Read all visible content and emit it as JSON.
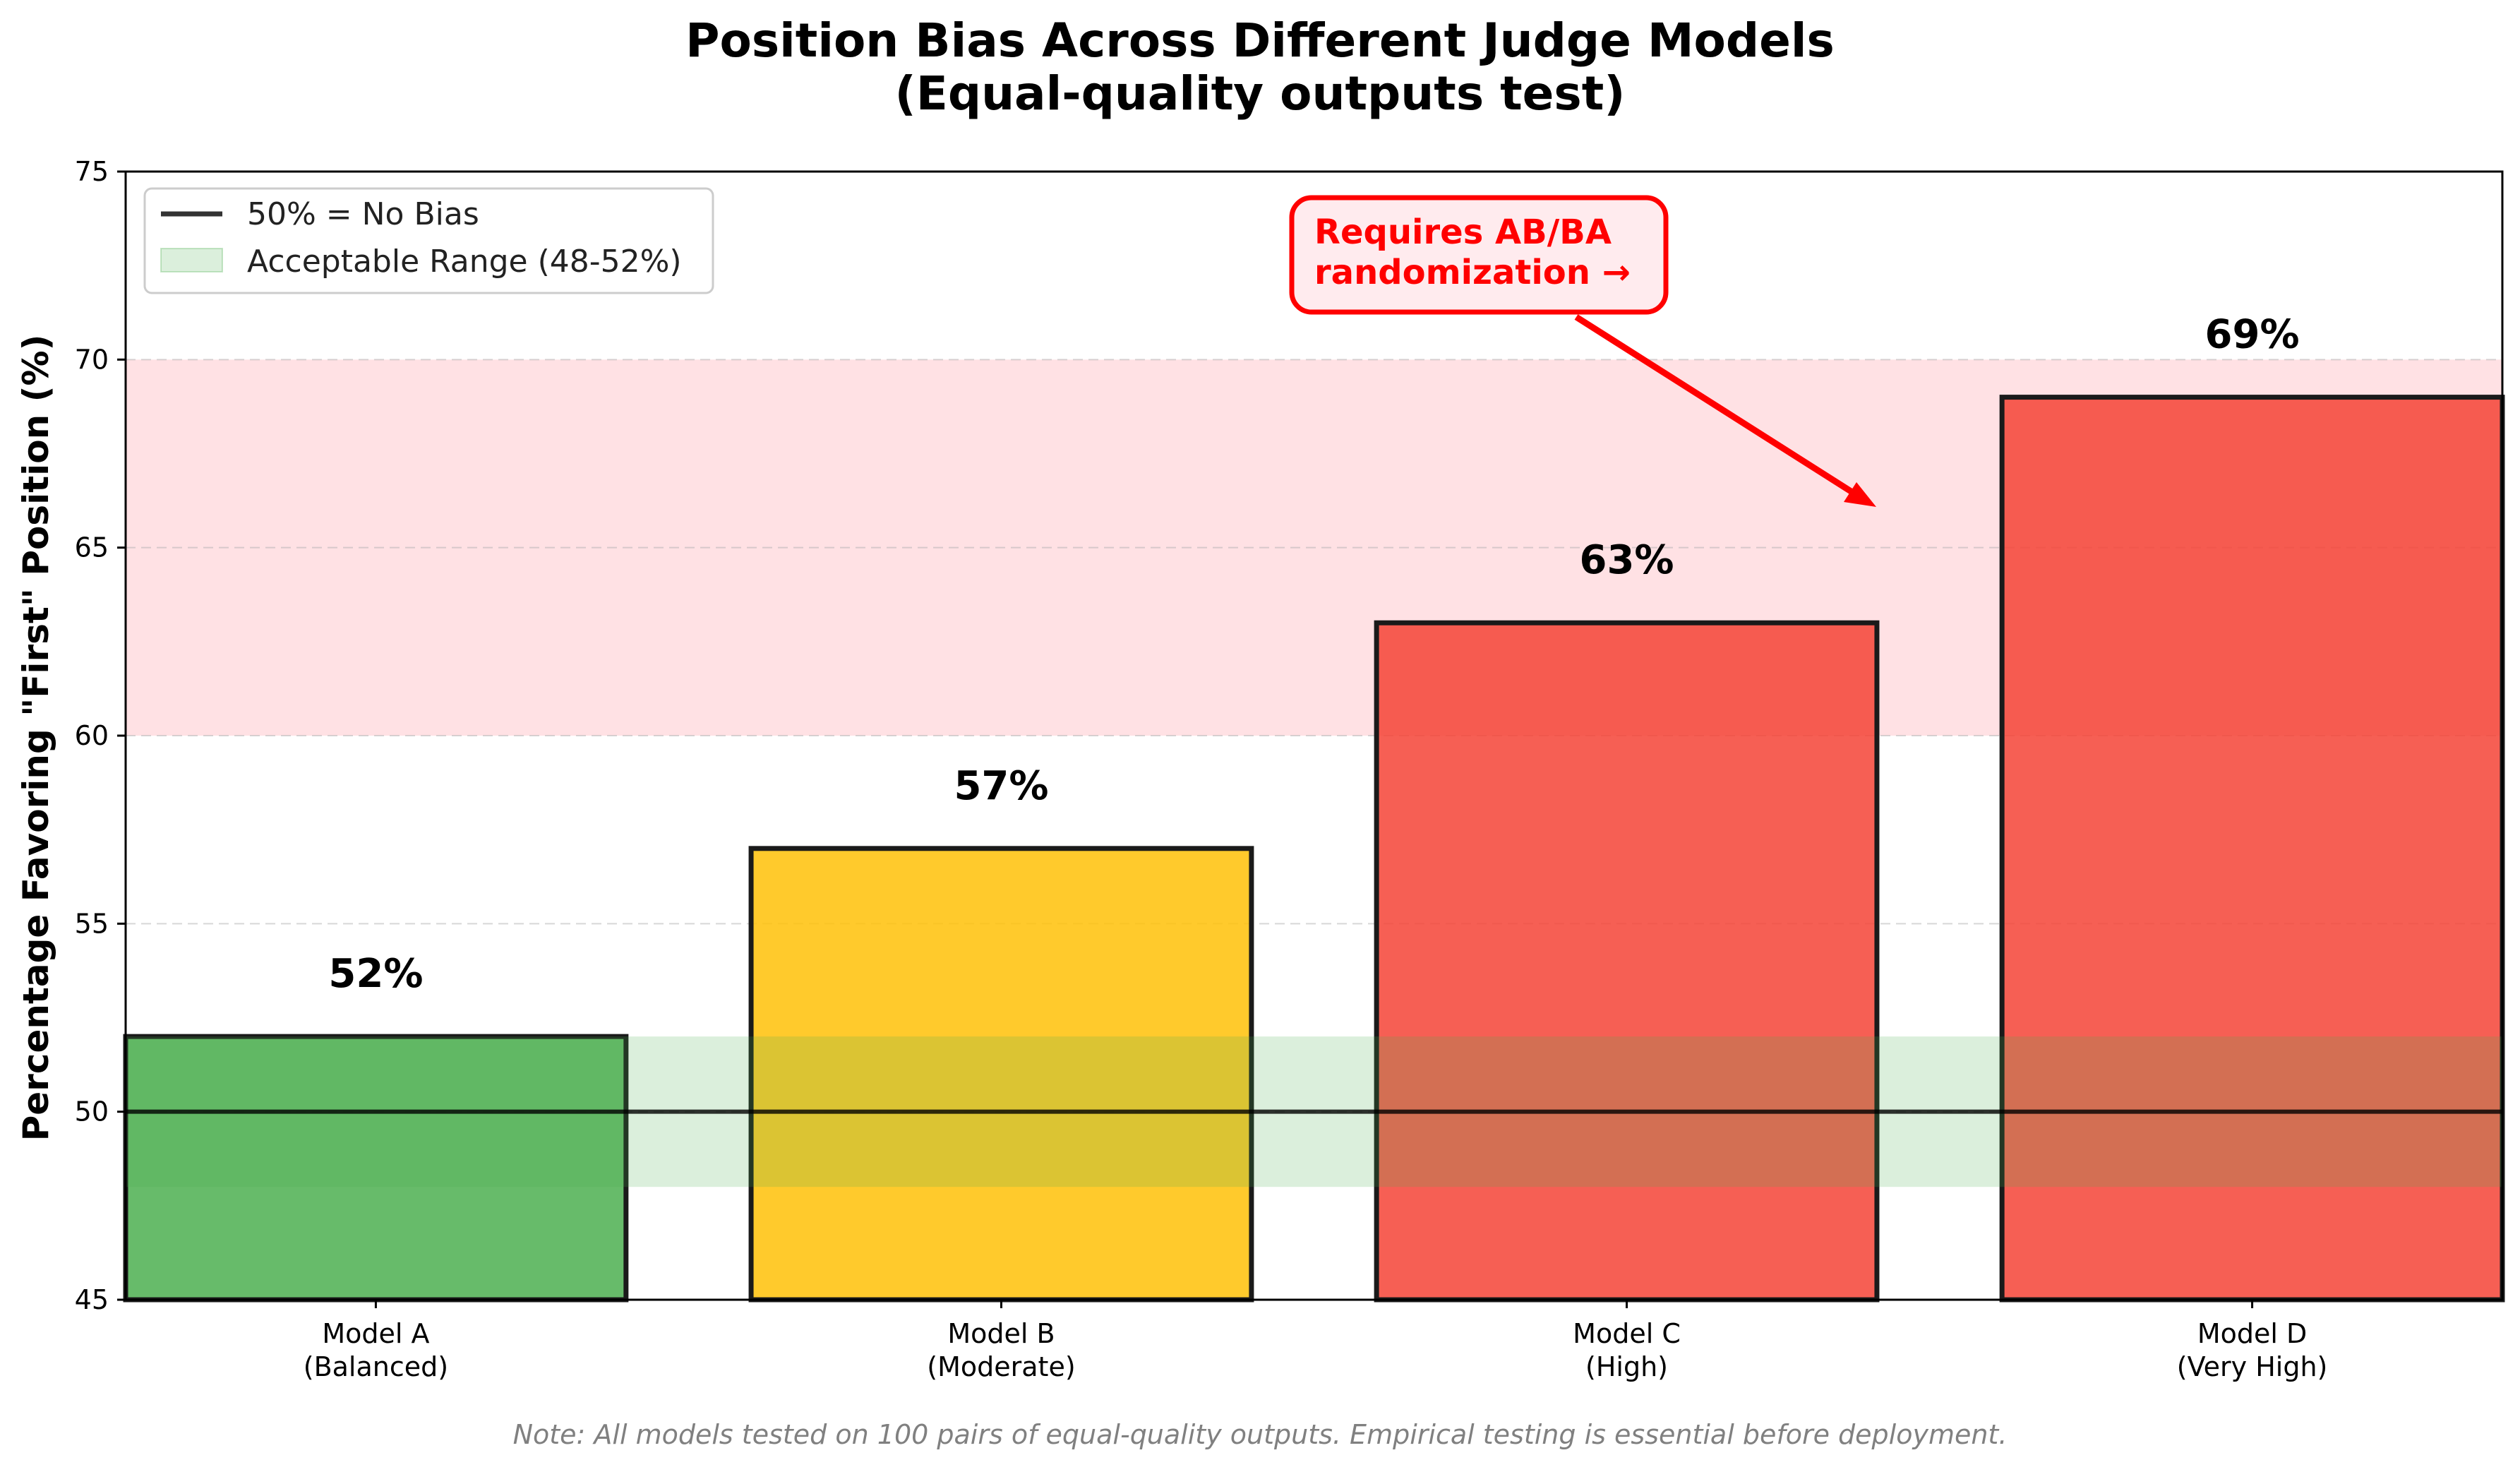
{
  "chart_data": {
    "type": "bar",
    "title": "Position Bias Across Different Judge Models",
    "subtitle": "(Equal-quality outputs test)",
    "xlabel": "",
    "ylabel": "Percentage Favoring \"First\" Position (%)",
    "ylim": [
      45,
      75
    ],
    "yticks": [
      "45",
      "50",
      "55",
      "60",
      "65",
      "70",
      "75"
    ],
    "categories": [
      {
        "name": "Model A",
        "detail": "(Balanced)"
      },
      {
        "name": "Model B",
        "detail": "(Moderate)"
      },
      {
        "name": "Model C",
        "detail": "(High)"
      },
      {
        "name": "Model D",
        "detail": "(Very High)"
      }
    ],
    "values": [
      52,
      57,
      63,
      69
    ],
    "value_labels": [
      "52%",
      "57%",
      "63%",
      "69%"
    ],
    "bar_colors": [
      "#4caf50",
      "#ffc107",
      "#f44336",
      "#f44336"
    ],
    "reference_line": {
      "value": 50,
      "label": "50% = No Bias",
      "color": "#000000"
    },
    "acceptable_band": {
      "range": [
        48,
        52
      ],
      "label": "Acceptable Range (48-52%)",
      "color": "#4caf50"
    },
    "high_bias_band": {
      "range": [
        60,
        70
      ],
      "color": "#ffcdd2"
    },
    "grid": "y dashed",
    "legend_position": "top-left",
    "annotation": {
      "lines": [
        "Requires AB/BA",
        "randomization →"
      ],
      "color": "#ff0000",
      "points_to": {
        "x": 2.5,
        "y": 66
      }
    },
    "footnote": "Note: All models tested on 100 pairs of equal-quality outputs. Empirical testing is essential before deployment."
  }
}
